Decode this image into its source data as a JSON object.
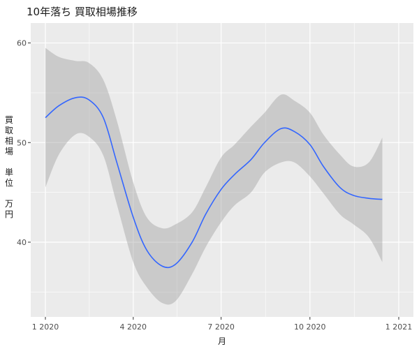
{
  "chart_data": {
    "type": "line",
    "title": "10年落ち 買取相場推移",
    "xlabel": "月",
    "ylabel": "買取相場 単位 万円",
    "ylabel_lines": [
      "買",
      "取",
      "相",
      "場",
      "",
      "単",
      "位",
      "",
      "万",
      "円"
    ],
    "x_axis": {
      "type": "date",
      "range": [
        "2020-01-01",
        "2021-01-01"
      ],
      "ticks": [
        {
          "value": "2020-01-01",
          "label": "1 2020"
        },
        {
          "value": "2020-04-01",
          "label": "4 2020"
        },
        {
          "value": "2020-07-01",
          "label": "7 2020"
        },
        {
          "value": "2020-10-01",
          "label": "10 2020"
        },
        {
          "value": "2021-01-01",
          "label": "1 2021"
        }
      ]
    },
    "y_axis": {
      "range": [
        32.5,
        62.0
      ],
      "ticks": [
        40,
        50,
        60
      ],
      "minor_ticks": [
        35,
        45,
        55
      ]
    },
    "grid": true,
    "background": "#ebebeb",
    "gridline_color": "#ffffff",
    "line_color": "#3366ff",
    "band_color": "#999999",
    "series": [
      {
        "style": "smooth line with confidence band",
        "points": [
          {
            "x": "2020-01-01",
            "y": 52.5,
            "lo": 45.5,
            "hi": 59.5
          },
          {
            "x": "2020-01-15",
            "y": 53.7,
            "lo": 48.8,
            "hi": 58.6
          },
          {
            "x": "2020-02-01",
            "y": 54.5,
            "lo": 50.8,
            "hi": 58.2
          },
          {
            "x": "2020-02-15",
            "y": 54.3,
            "lo": 50.6,
            "hi": 58.0
          },
          {
            "x": "2020-03-01",
            "y": 52.5,
            "lo": 48.7,
            "hi": 56.3
          },
          {
            "x": "2020-03-15",
            "y": 48.0,
            "lo": 43.8,
            "hi": 52.2
          },
          {
            "x": "2020-04-01",
            "y": 42.5,
            "lo": 38.0,
            "hi": 46.0
          },
          {
            "x": "2020-04-15",
            "y": 39.2,
            "lo": 35.5,
            "hi": 42.5
          },
          {
            "x": "2020-05-01",
            "y": 37.6,
            "lo": 33.9,
            "hi": 41.4
          },
          {
            "x": "2020-05-15",
            "y": 37.8,
            "lo": 34.1,
            "hi": 41.8
          },
          {
            "x": "2020-06-01",
            "y": 40.0,
            "lo": 36.8,
            "hi": 43.0
          },
          {
            "x": "2020-06-15",
            "y": 42.8,
            "lo": 39.5,
            "hi": 45.5
          },
          {
            "x": "2020-07-01",
            "y": 45.3,
            "lo": 42.0,
            "hi": 48.5
          },
          {
            "x": "2020-07-15",
            "y": 46.8,
            "lo": 43.7,
            "hi": 49.8
          },
          {
            "x": "2020-08-01",
            "y": 48.3,
            "lo": 45.0,
            "hi": 51.6
          },
          {
            "x": "2020-08-15",
            "y": 50.0,
            "lo": 47.0,
            "hi": 53.0
          },
          {
            "x": "2020-09-01",
            "y": 51.4,
            "lo": 48.0,
            "hi": 54.8
          },
          {
            "x": "2020-09-15",
            "y": 51.1,
            "lo": 48.0,
            "hi": 54.2
          },
          {
            "x": "2020-10-01",
            "y": 49.8,
            "lo": 46.6,
            "hi": 53.0
          },
          {
            "x": "2020-10-15",
            "y": 47.6,
            "lo": 44.9,
            "hi": 50.8
          },
          {
            "x": "2020-11-01",
            "y": 45.5,
            "lo": 42.8,
            "hi": 48.8
          },
          {
            "x": "2020-11-15",
            "y": 44.7,
            "lo": 41.8,
            "hi": 47.6
          },
          {
            "x": "2020-12-01",
            "y": 44.4,
            "lo": 40.5,
            "hi": 48.0
          },
          {
            "x": "2020-12-15",
            "y": 44.3,
            "lo": 38.0,
            "hi": 50.5
          }
        ]
      }
    ]
  }
}
